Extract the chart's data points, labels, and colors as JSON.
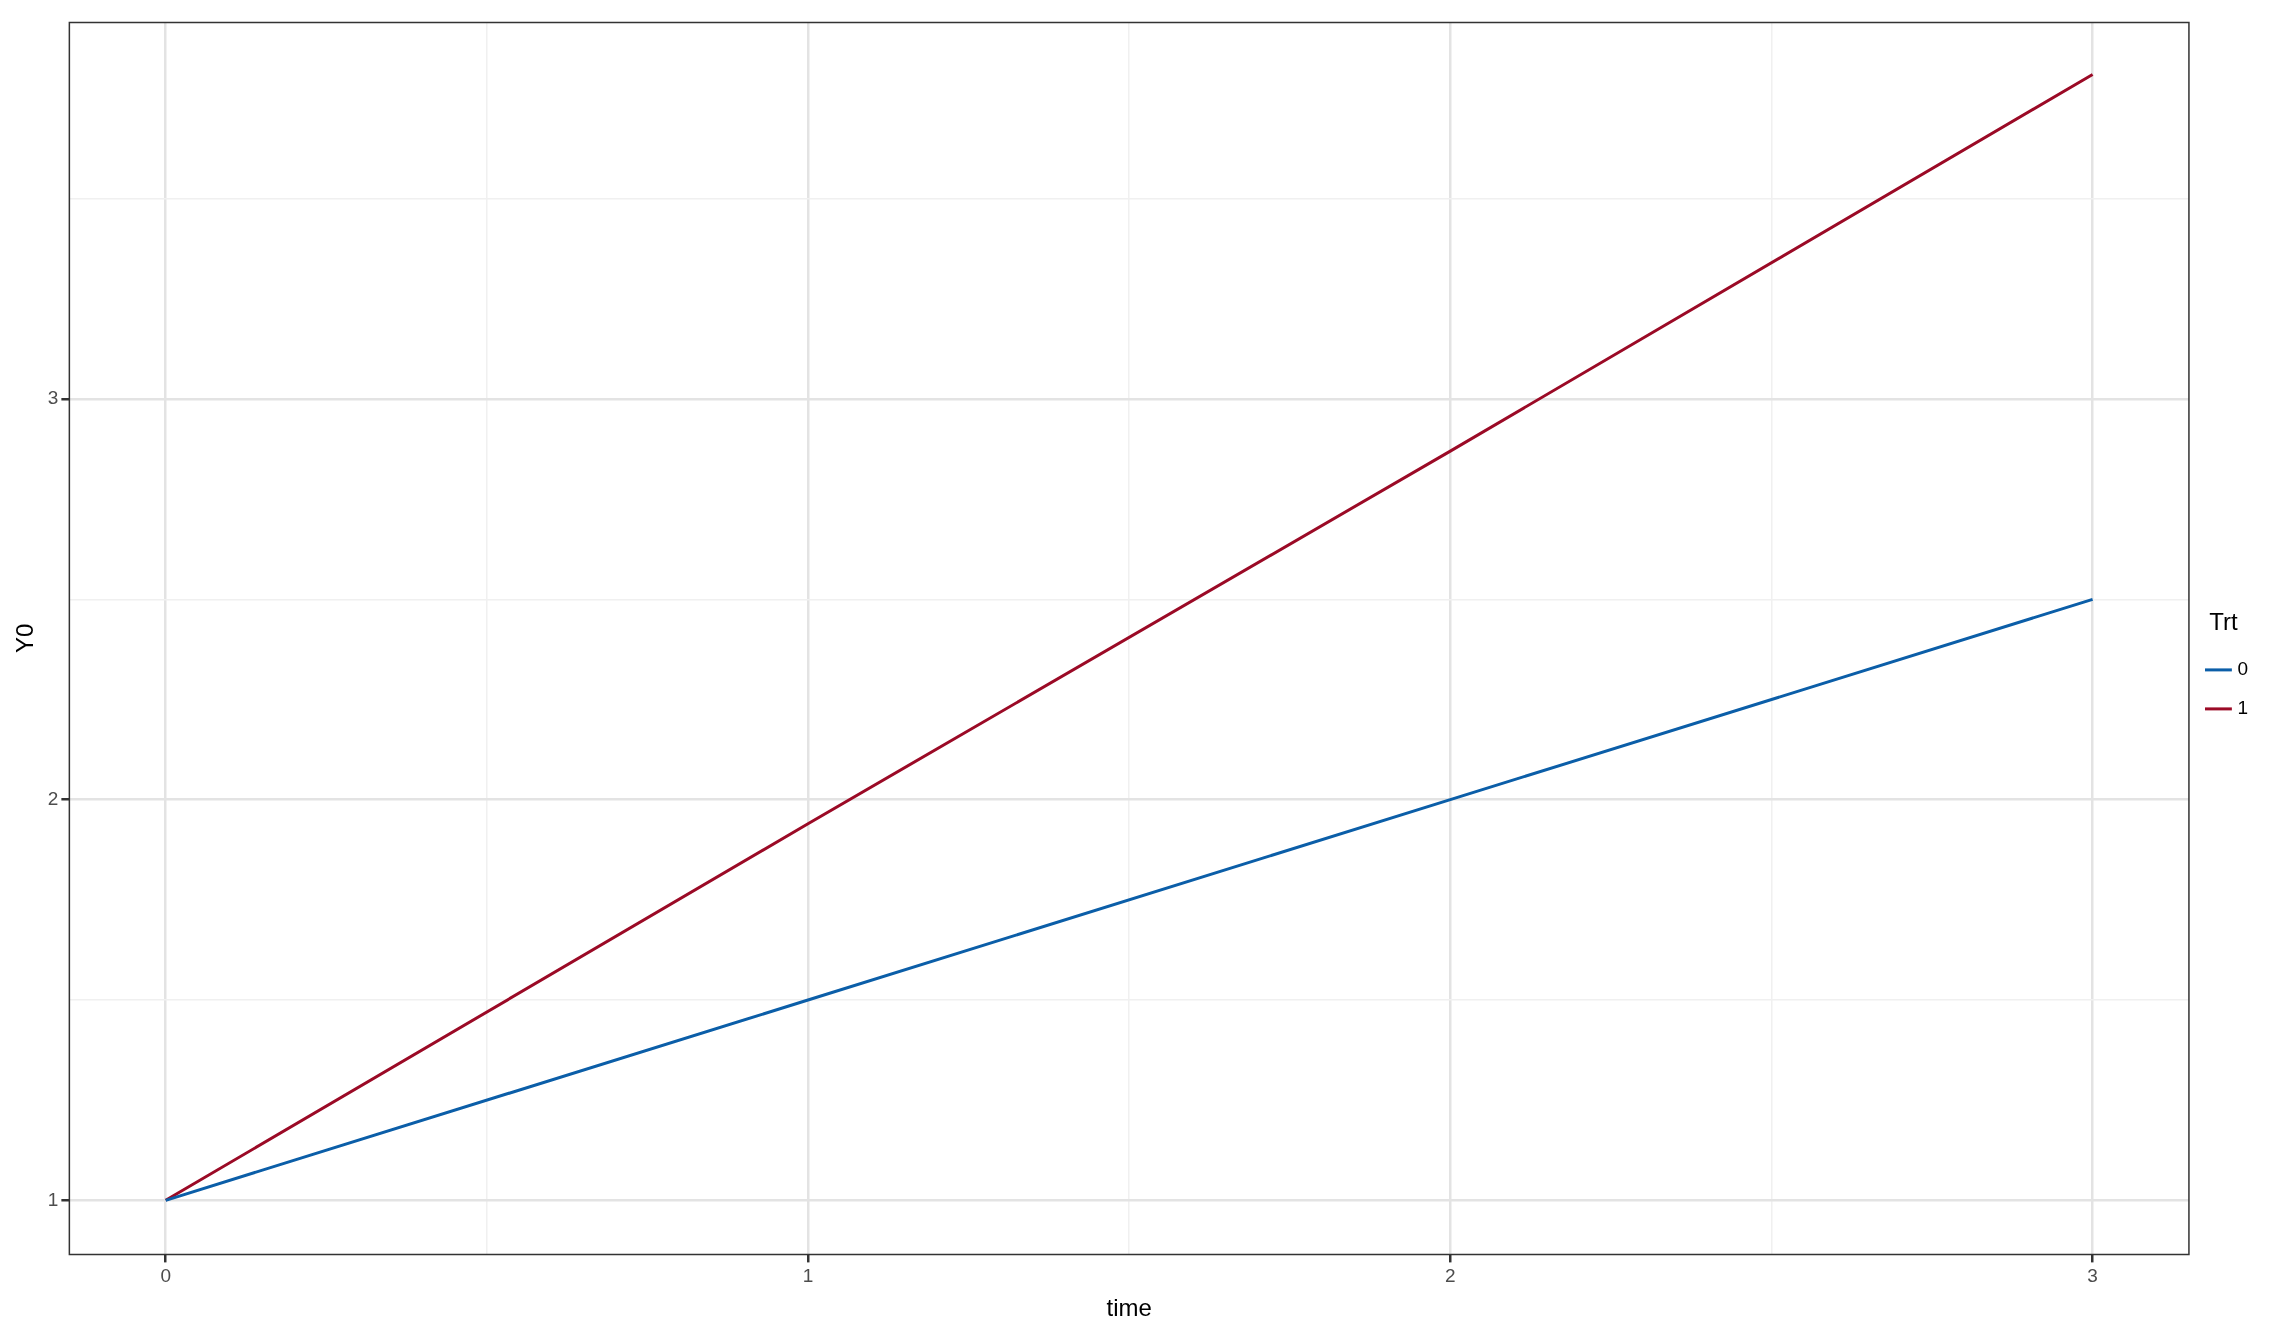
{
  "chart_data": {
    "type": "line",
    "xlabel": "time",
    "ylabel": "Y0",
    "legend_title": "Trt",
    "x": [
      0,
      1,
      2,
      3
    ],
    "series": [
      {
        "name": "0",
        "color": "#0b5ea8",
        "values": [
          1,
          1.5,
          2,
          2.5
        ]
      },
      {
        "name": "1",
        "color": "#9b0a26",
        "values": [
          1,
          1.94,
          2.87,
          3.81
        ]
      }
    ],
    "xlim": [
      -0.15,
      3.15
    ],
    "xticks": [
      0,
      {
        "value": 0.5,
        "label": null
      },
      1,
      {
        "value": 1.5,
        "label": null
      },
      2,
      {
        "value": 2.5,
        "label": null
      },
      3
    ],
    "ylim": [
      0.865,
      3.94
    ],
    "yticks": [
      {
        "value": 1,
        "label": "1"
      },
      {
        "value": 1.5,
        "label": null
      },
      {
        "value": 2,
        "label": "2"
      },
      {
        "value": 2.5,
        "label": null
      },
      {
        "value": 3,
        "label": "3"
      },
      {
        "value": 3.5,
        "label": null
      }
    ],
    "grid": true,
    "legend": "right",
    "marker": "none",
    "line_style": "solid"
  }
}
